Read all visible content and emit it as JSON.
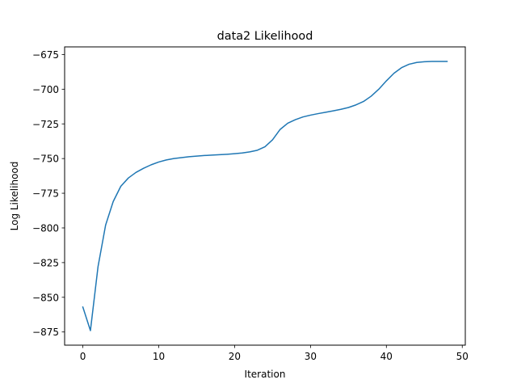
{
  "chart_data": {
    "type": "line",
    "title": "data2 Likelihood",
    "xlabel": "Iteration",
    "ylabel": "Log Likelihood",
    "xlim": [
      -2.4,
      50.4
    ],
    "ylim": [
      -884.5,
      -669.5
    ],
    "xticks": [
      0,
      10,
      20,
      30,
      40,
      50
    ],
    "yticks": [
      -875,
      -850,
      -825,
      -800,
      -775,
      -750,
      -725,
      -700,
      -675
    ],
    "grid": false,
    "line_color": "#1f77b4",
    "series": [
      {
        "x": [
          0,
          1,
          2,
          3,
          4,
          5,
          6,
          7,
          8,
          9,
          10,
          11,
          12,
          13,
          14,
          15,
          16,
          17,
          18,
          19,
          20,
          21,
          22,
          23,
          24,
          25,
          26,
          27,
          28,
          29,
          30,
          31,
          32,
          33,
          34,
          35,
          36,
          37,
          38,
          39,
          40,
          41,
          42,
          43,
          44,
          45,
          46,
          47,
          48
        ],
        "values": [
          -857,
          -874,
          -828,
          -798,
          -781,
          -770,
          -764,
          -760,
          -757,
          -754.5,
          -752.5,
          -751,
          -750,
          -749.3,
          -748.7,
          -748.2,
          -747.8,
          -747.5,
          -747.2,
          -746.9,
          -746.5,
          -746,
          -745.2,
          -744,
          -741.5,
          -736.5,
          -729,
          -724.5,
          -722,
          -720,
          -718.7,
          -717.6,
          -716.6,
          -715.6,
          -714.5,
          -713.2,
          -711.3,
          -708.8,
          -705,
          -700,
          -694,
          -688.5,
          -684.5,
          -682,
          -680.7,
          -680.2,
          -680,
          -680,
          -680
        ]
      }
    ]
  }
}
